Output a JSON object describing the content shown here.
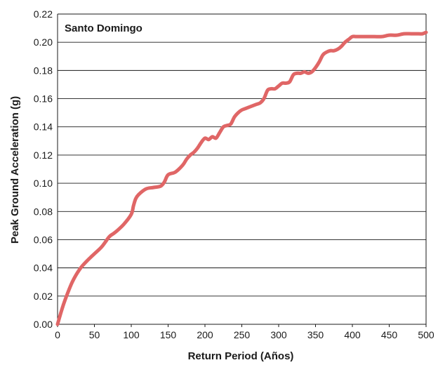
{
  "chart_data": {
    "type": "line",
    "title": "Santo Domingo",
    "xlabel": "Return Period (Años)",
    "ylabel": "Peak Ground Acceleration (g)",
    "xlim": [
      0,
      500
    ],
    "ylim": [
      0,
      0.22
    ],
    "x_ticks": [
      "0",
      "50",
      "100",
      "150",
      "200",
      "250",
      "300",
      "350",
      "400",
      "450",
      "500"
    ],
    "y_ticks": [
      "0.00",
      "0.02",
      "0.04",
      "0.06",
      "0.08",
      "0.10",
      "0.12",
      "0.14",
      "0.16",
      "0.18",
      "0.20",
      "0.22"
    ],
    "grid": "horizontal",
    "line_color": "#e06666",
    "series": [
      {
        "x": [
          0,
          5,
          10,
          20,
          30,
          40,
          50,
          60,
          70,
          75,
          80,
          90,
          100,
          103,
          106,
          110,
          120,
          130,
          140,
          145,
          150,
          160,
          170,
          175,
          180,
          185,
          190,
          195,
          200,
          205,
          210,
          215,
          220,
          225,
          230,
          235,
          240,
          245,
          250,
          255,
          260,
          265,
          270,
          275,
          280,
          285,
          290,
          295,
          300,
          305,
          310,
          315,
          320,
          325,
          330,
          335,
          340,
          345,
          350,
          355,
          360,
          365,
          370,
          375,
          380,
          385,
          390,
          395,
          400,
          405,
          410,
          420,
          430,
          440,
          450,
          460,
          470,
          480,
          490,
          495,
          500
        ],
        "values": [
          0.0,
          0.009,
          0.017,
          0.03,
          0.039,
          0.045,
          0.05,
          0.055,
          0.062,
          0.064,
          0.066,
          0.071,
          0.078,
          0.084,
          0.089,
          0.092,
          0.096,
          0.097,
          0.098,
          0.101,
          0.106,
          0.108,
          0.113,
          0.117,
          0.12,
          0.122,
          0.125,
          0.129,
          0.132,
          0.131,
          0.133,
          0.132,
          0.136,
          0.14,
          0.141,
          0.142,
          0.147,
          0.15,
          0.152,
          0.153,
          0.154,
          0.155,
          0.156,
          0.157,
          0.16,
          0.166,
          0.167,
          0.167,
          0.169,
          0.171,
          0.171,
          0.172,
          0.177,
          0.178,
          0.178,
          0.179,
          0.178,
          0.179,
          0.182,
          0.186,
          0.191,
          0.193,
          0.194,
          0.194,
          0.195,
          0.197,
          0.2,
          0.202,
          0.204,
          0.204,
          0.204,
          0.204,
          0.204,
          0.204,
          0.205,
          0.205,
          0.206,
          0.206,
          0.206,
          0.206,
          0.207
        ]
      }
    ]
  }
}
